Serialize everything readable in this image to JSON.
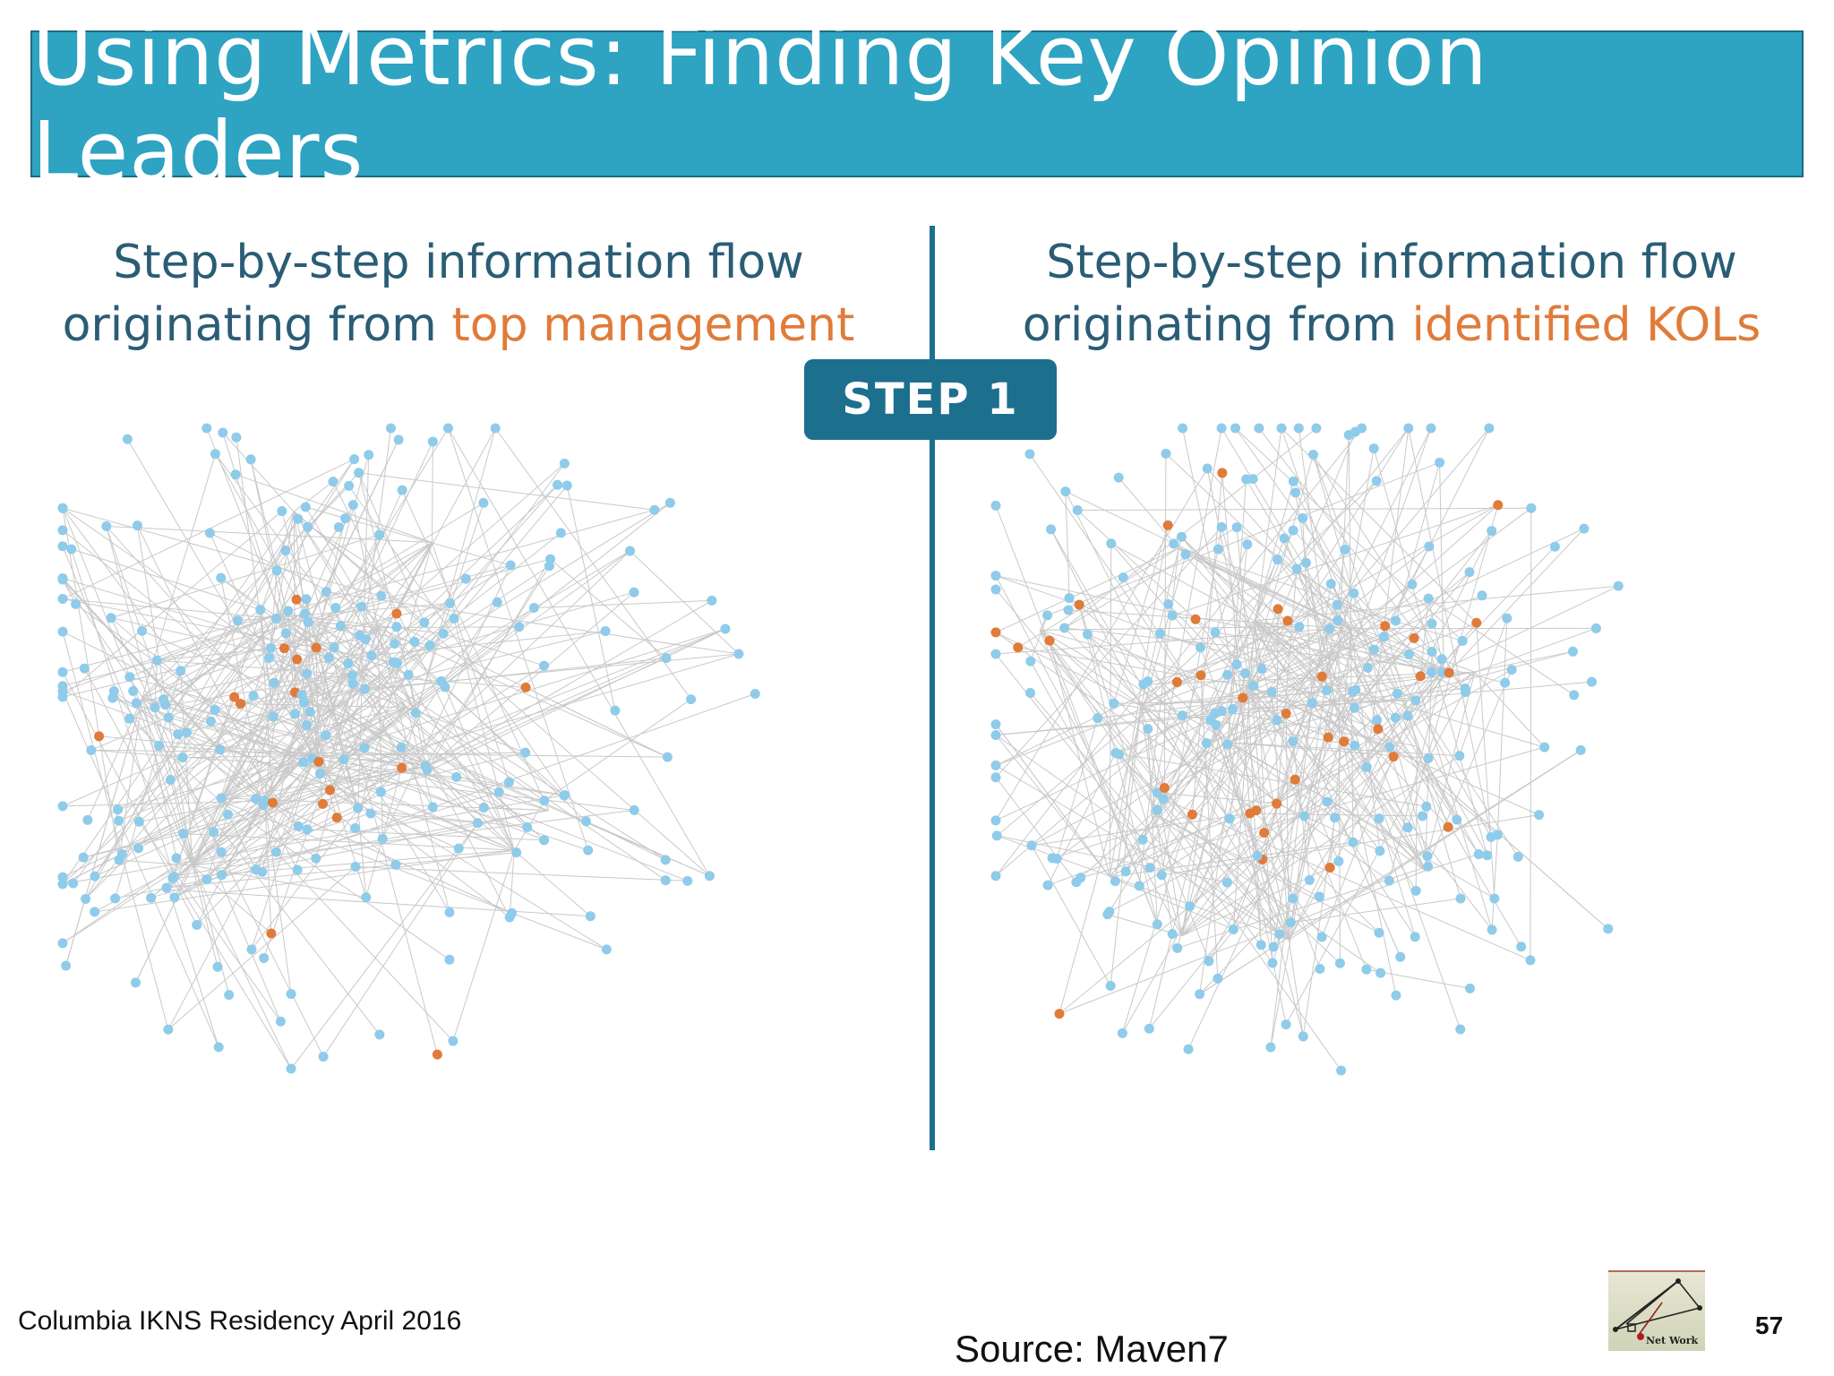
{
  "header": {
    "title": "Using Metrics: Finding Key Opinion Leaders"
  },
  "left_panel": {
    "caption_line1": "Step-by-step information flow",
    "caption_line2_prefix": "originating from ",
    "caption_line2_highlight": "top management"
  },
  "right_panel": {
    "caption_line1": "Step-by-step information flow",
    "caption_line2_prefix": "originating from ",
    "caption_line2_highlight": "identified KOLs"
  },
  "step_badge": {
    "label": "STEP 1"
  },
  "footer": {
    "residency": "Columbia IKNS Residency April 2016",
    "source": "Source: Maven7",
    "page_number": "57",
    "logo_label": "Net Work"
  },
  "colors": {
    "title_bar": "#2ea3c2",
    "caption_text": "#2a5d75",
    "highlight": "#e07b39",
    "divider": "#1d6f8e",
    "node_default": "#8fcbea",
    "node_active": "#e07b39",
    "edge": "#c9c9c9"
  }
}
